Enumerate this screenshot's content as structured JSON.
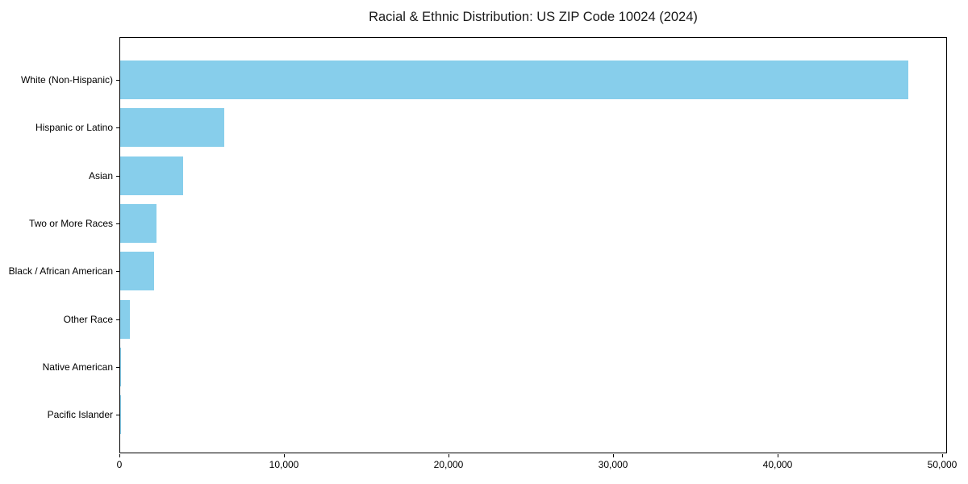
{
  "chart_data": {
    "type": "bar",
    "orientation": "horizontal",
    "title": "Racial & Ethnic Distribution: US ZIP Code 10024 (2024)",
    "xlabel": "",
    "ylabel": "",
    "categories": [
      "White (Non-Hispanic)",
      "Hispanic or Latino",
      "Asian",
      "Two or More Races",
      "Black / African American",
      "Other Race",
      "Native American",
      "Pacific Islander"
    ],
    "values": [
      47900,
      6300,
      3820,
      2200,
      2060,
      600,
      40,
      15
    ],
    "xlim": [
      0,
      50300
    ],
    "x_ticks": [
      0,
      10000,
      20000,
      30000,
      40000,
      50000
    ],
    "x_tick_labels": [
      "0",
      "10,000",
      "20,000",
      "30,000",
      "40,000",
      "50,000"
    ],
    "grid": false,
    "legend": false,
    "bar_color": "#87CEEB"
  },
  "colors": {
    "bar": "#87CEEB",
    "axis": "#000000",
    "text": "#000000",
    "background": "#ffffff"
  }
}
